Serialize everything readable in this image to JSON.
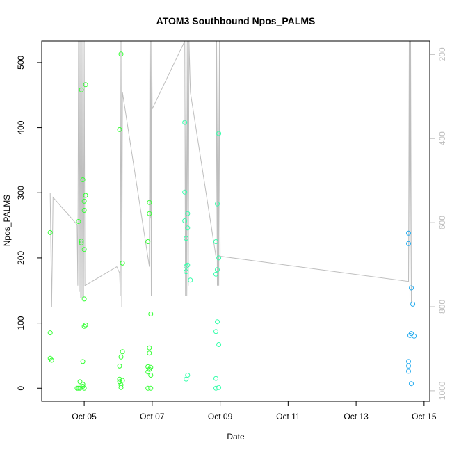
{
  "chart_data": {
    "type": "scatter",
    "title": "ATOM3 Southbound Npos_PALMS",
    "xlabel": "Date",
    "ylabel": "Npos_PALMS",
    "x_axis_type": "date",
    "xlim": [
      "2016-10-03T18:00",
      "2016-10-15T04:00"
    ],
    "ylim": [
      -20,
      533
    ],
    "x_ticks": [
      {
        "value": "2016-10-05",
        "label": "Oct 05"
      },
      {
        "value": "2016-10-07",
        "label": "Oct 07"
      },
      {
        "value": "2016-10-09",
        "label": "Oct 09"
      },
      {
        "value": "2016-10-11",
        "label": "Oct 11"
      },
      {
        "value": "2016-10-13",
        "label": "Oct 13"
      },
      {
        "value": "2016-10-15",
        "label": "Oct 15"
      }
    ],
    "y_ticks": [
      0,
      100,
      200,
      300,
      400,
      500
    ],
    "secondary_axis": {
      "side": "right",
      "reversed": true,
      "color": "#bebebe",
      "ylim": [
        168,
        1025
      ],
      "ticks": [
        200,
        400,
        600,
        800,
        1000
      ]
    },
    "series": [
      {
        "color": "#33ff33",
        "points": [
          [
            "2016-10-04T00:00",
            85
          ],
          [
            "2016-10-04T00:00",
            239
          ],
          [
            "2016-10-04T00:00",
            46
          ],
          [
            "2016-10-04T01:00",
            43
          ],
          [
            "2016-10-04T20:00",
            256
          ],
          [
            "2016-10-04T19:00",
            0
          ],
          [
            "2016-10-04T20:00",
            0
          ],
          [
            "2016-10-04T21:00",
            0
          ],
          [
            "2016-10-04T21:00",
            10
          ],
          [
            "2016-10-04T22:00",
            458
          ],
          [
            "2016-10-04T22:00",
            226
          ],
          [
            "2016-10-04T22:00",
            223
          ],
          [
            "2016-10-04T23:00",
            320
          ],
          [
            "2016-10-04T23:00",
            41
          ],
          [
            "2016-10-04T23:00",
            6
          ],
          [
            "2016-10-04T23:00",
            3
          ],
          [
            "2016-10-05T00:00",
            287
          ],
          [
            "2016-10-05T00:00",
            273
          ],
          [
            "2016-10-05T00:00",
            213
          ],
          [
            "2016-10-05T00:00",
            137
          ],
          [
            "2016-10-05T00:00",
            95
          ],
          [
            "2016-10-05T00:00",
            0
          ],
          [
            "2016-10-05T01:00",
            466
          ],
          [
            "2016-10-05T01:00",
            296
          ],
          [
            "2016-10-05T01:00",
            97
          ],
          [
            "2016-10-06T01:00",
            397
          ],
          [
            "2016-10-06T01:00",
            34
          ],
          [
            "2016-10-06T01:00",
            14
          ],
          [
            "2016-10-06T01:00",
            10
          ],
          [
            "2016-10-06T02:00",
            5
          ],
          [
            "2016-10-06T02:00",
            1
          ],
          [
            "2016-10-06T02:00",
            513
          ],
          [
            "2016-10-06T02:00",
            48
          ],
          [
            "2016-10-06T03:00",
            192
          ],
          [
            "2016-10-06T03:00",
            56
          ],
          [
            "2016-10-06T03:00",
            12
          ],
          [
            "2016-10-06T21:00",
            225
          ],
          [
            "2016-10-06T21:00",
            33
          ],
          [
            "2016-10-06T21:00",
            25
          ],
          [
            "2016-10-06T21:00",
            0
          ],
          [
            "2016-10-06T22:00",
            268
          ],
          [
            "2016-10-06T22:00",
            285
          ],
          [
            "2016-10-06T22:00",
            62
          ],
          [
            "2016-10-06T22:00",
            54
          ],
          [
            "2016-10-06T22:00",
            29
          ],
          [
            "2016-10-06T23:00",
            32
          ],
          [
            "2016-10-06T23:00",
            20
          ],
          [
            "2016-10-06T23:00",
            114
          ],
          [
            "2016-10-06T23:00",
            0
          ]
        ]
      },
      {
        "color": "#33ffaa",
        "points": [
          [
            "2016-10-07T23:00",
            408
          ],
          [
            "2016-10-07T23:00",
            301
          ],
          [
            "2016-10-07T23:00",
            257
          ],
          [
            "2016-10-08T00:00",
            230
          ],
          [
            "2016-10-08T00:00",
            187
          ],
          [
            "2016-10-08T00:00",
            179
          ],
          [
            "2016-10-08T00:00",
            14
          ],
          [
            "2016-10-08T01:00",
            268
          ],
          [
            "2016-10-08T01:00",
            246
          ],
          [
            "2016-10-08T01:00",
            189
          ],
          [
            "2016-10-08T01:00",
            20
          ],
          [
            "2016-10-08T03:00",
            166
          ],
          [
            "2016-10-08T21:00",
            225
          ],
          [
            "2016-10-08T21:00",
            175
          ],
          [
            "2016-10-08T21:00",
            87
          ],
          [
            "2016-10-08T21:00",
            15
          ],
          [
            "2016-10-08T21:00",
            0
          ],
          [
            "2016-10-08T22:00",
            283
          ],
          [
            "2016-10-08T22:00",
            182
          ],
          [
            "2016-10-08T22:00",
            102
          ],
          [
            "2016-10-08T23:00",
            391
          ],
          [
            "2016-10-08T23:00",
            200
          ],
          [
            "2016-10-08T23:00",
            67
          ],
          [
            "2016-10-08T23:00",
            1
          ]
        ]
      },
      {
        "color": "#22aaee",
        "points": [
          [
            "2016-10-14T13:00",
            238
          ],
          [
            "2016-10-14T13:00",
            222
          ],
          [
            "2016-10-14T13:00",
            41
          ],
          [
            "2016-10-14T13:00",
            34
          ],
          [
            "2016-10-14T13:00",
            26
          ],
          [
            "2016-10-14T14:00",
            81
          ],
          [
            "2016-10-14T15:00",
            154
          ],
          [
            "2016-10-14T15:00",
            84
          ],
          [
            "2016-10-14T15:00",
            7
          ],
          [
            "2016-10-14T16:00",
            129
          ],
          [
            "2016-10-14T17:00",
            80
          ]
        ]
      }
    ],
    "secondary_line": {
      "color": "#bebebe",
      "points": [
        [
          "2016-10-04T00:00",
          530
        ],
        [
          "2016-10-04T01:00",
          800
        ],
        [
          "2016-10-04T02:00",
          540
        ],
        [
          "2016-10-04T19:00",
          605
        ],
        [
          "2016-10-04T19:30",
          750
        ],
        [
          "2016-10-04T20:00",
          168
        ],
        [
          "2016-10-04T20:30",
          765
        ],
        [
          "2016-10-04T21:00",
          168
        ],
        [
          "2016-10-04T21:30",
          780
        ],
        [
          "2016-10-04T22:00",
          168
        ],
        [
          "2016-10-04T22:30",
          780
        ],
        [
          "2016-10-04T23:00",
          168
        ],
        [
          "2016-10-04T23:30",
          780
        ],
        [
          "2016-10-05T00:00",
          168
        ],
        [
          "2016-10-05T00:30",
          750
        ],
        [
          "2016-10-05T23:00",
          705
        ],
        [
          "2016-10-06T01:00",
          720
        ],
        [
          "2016-10-06T01:30",
          775
        ],
        [
          "2016-10-06T02:00",
          168
        ],
        [
          "2016-10-06T02:30",
          800
        ],
        [
          "2016-10-06T03:00",
          290
        ],
        [
          "2016-10-06T22:00",
          705
        ],
        [
          "2016-10-06T22:20",
          168
        ],
        [
          "2016-10-06T22:40",
          590
        ],
        [
          "2016-10-06T23:00",
          168
        ],
        [
          "2016-10-06T23:20",
          775
        ],
        [
          "2016-10-06T23:40",
          168
        ],
        [
          "2016-10-07T00:00",
          330
        ],
        [
          "2016-10-07T23:00",
          168
        ],
        [
          "2016-10-07T23:30",
          775
        ],
        [
          "2016-10-08T00:00",
          168
        ],
        [
          "2016-10-08T00:30",
          775
        ],
        [
          "2016-10-08T01:00",
          168
        ],
        [
          "2016-10-08T01:30",
          750
        ],
        [
          "2016-10-08T02:00",
          168
        ],
        [
          "2016-10-08T03:00",
          290
        ],
        [
          "2016-10-08T21:00",
          680
        ],
        [
          "2016-10-08T21:30",
          168
        ],
        [
          "2016-10-08T22:00",
          750
        ],
        [
          "2016-10-08T22:30",
          168
        ],
        [
          "2016-10-08T23:00",
          750
        ],
        [
          "2016-10-08T23:30",
          168
        ],
        [
          "2016-10-09T00:00",
          680
        ],
        [
          "2016-10-14T13:00",
          740
        ],
        [
          "2016-10-14T13:30",
          168
        ],
        [
          "2016-10-14T14:00",
          780
        ],
        [
          "2016-10-14T14:30",
          168
        ],
        [
          "2016-10-14T15:00",
          790
        ]
      ]
    },
    "grid": false,
    "legend": "none"
  }
}
